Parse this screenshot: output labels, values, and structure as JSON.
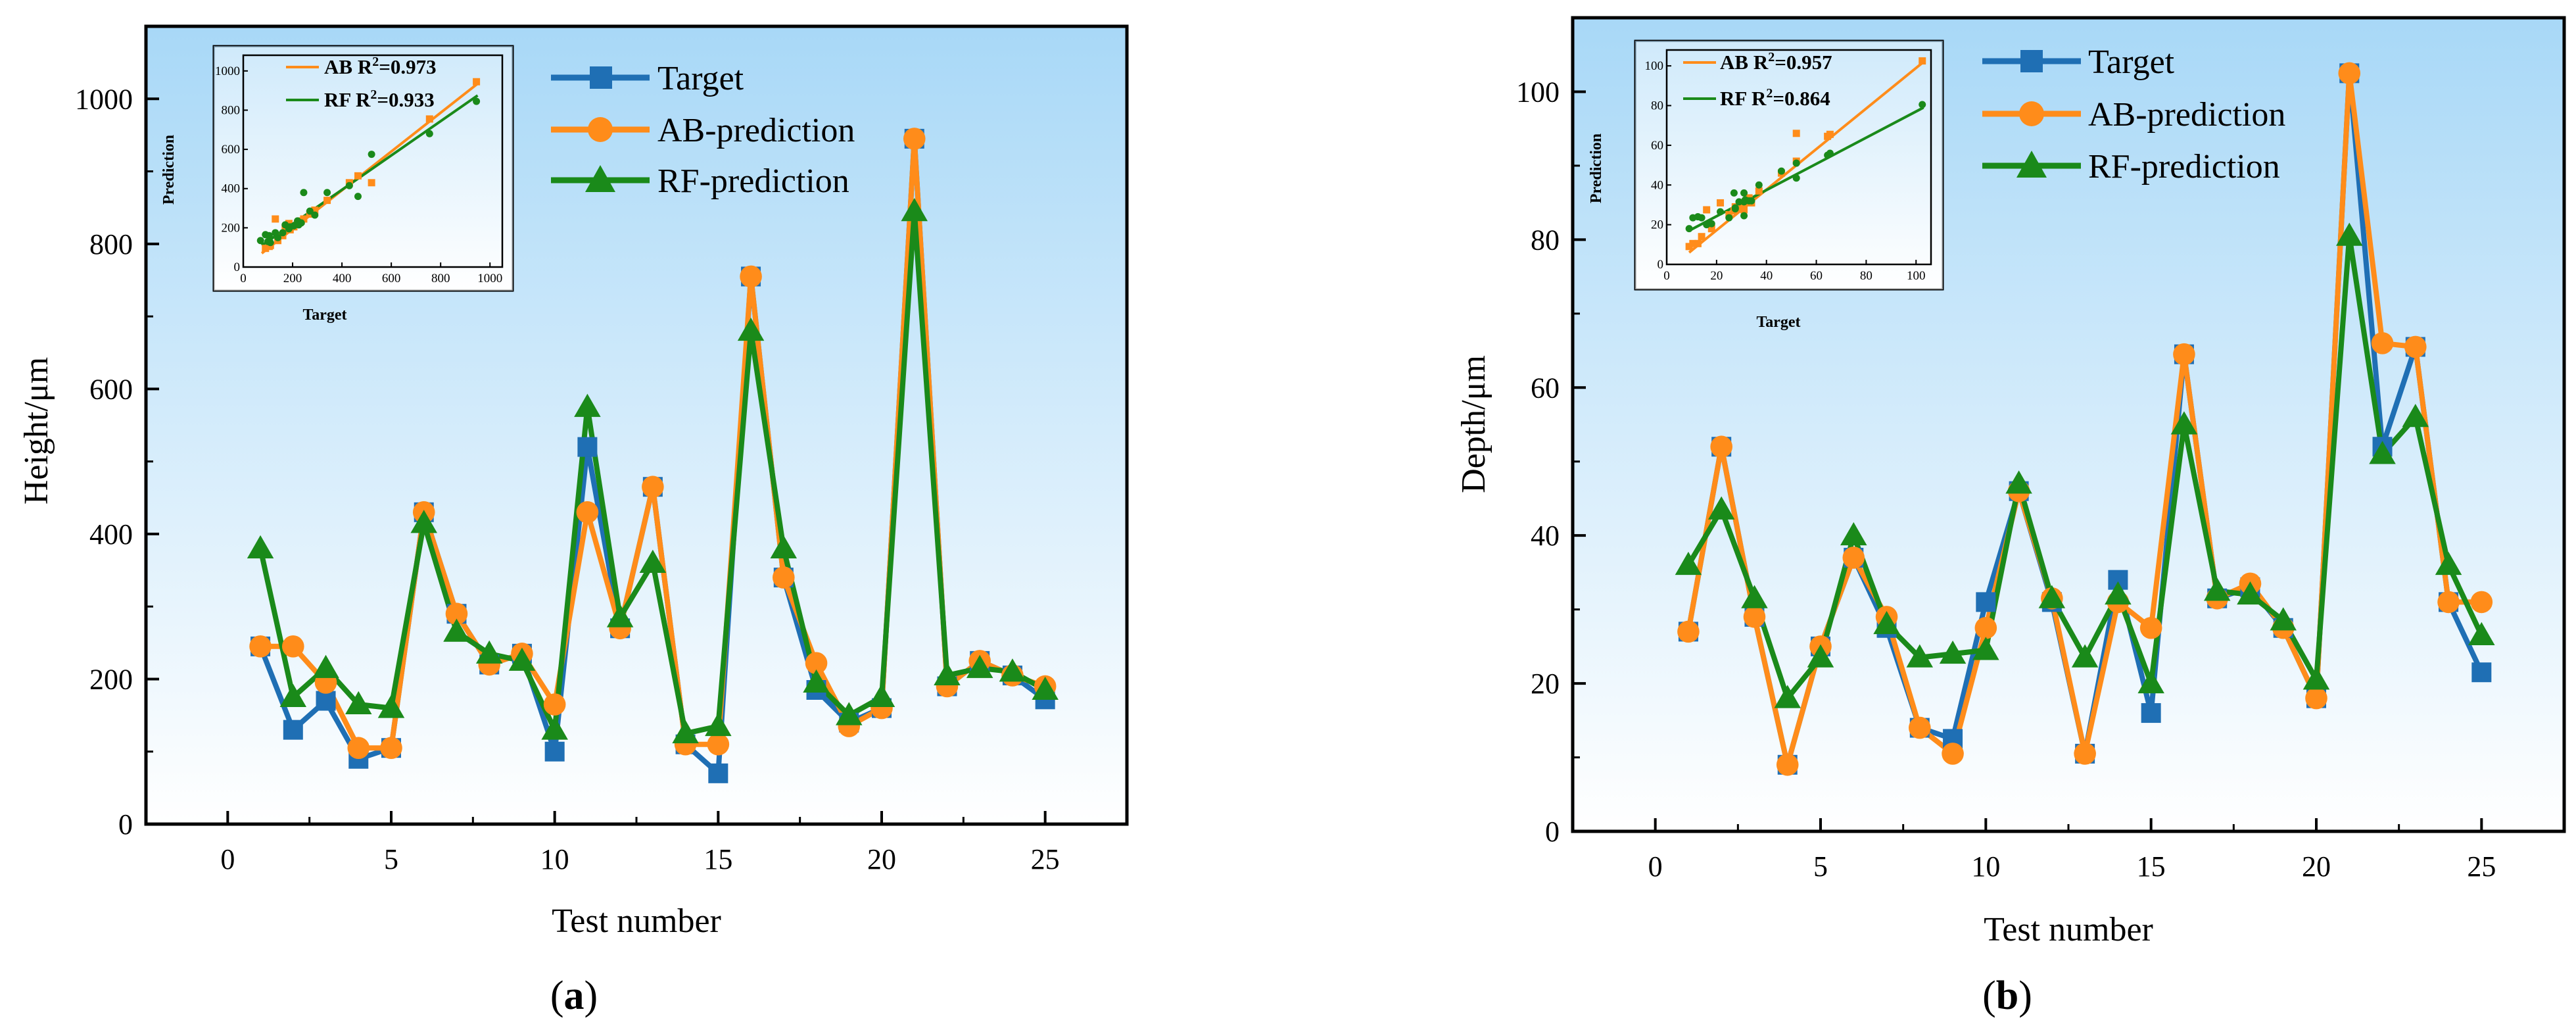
{
  "colors": {
    "target": "#1f6fb4",
    "ab": "#ff8c1a",
    "rf": "#1a8a1a",
    "bg_top": "#a8d8f7",
    "bg_bottom": "#ffffff"
  },
  "legend_labels": {
    "target": "Target",
    "ab": "AB-prediction",
    "rf": "RF-prediction"
  },
  "inset_axis": {
    "xlabel": "Target",
    "ylabel": "Prediction"
  },
  "chart_data": [
    {
      "id": "a",
      "panel_label": "a",
      "type": "line",
      "xlabel": "Test number",
      "ylabel": "Height/μm",
      "xlim": [
        -2.5,
        27.5
      ],
      "ylim": [
        0,
        1100
      ],
      "xticks": [
        0,
        5,
        10,
        15,
        20,
        25
      ],
      "yticks": [
        0,
        200,
        400,
        600,
        800,
        1000
      ],
      "x": [
        1,
        2,
        3,
        4,
        5,
        6,
        7,
        8,
        9,
        10,
        11,
        12,
        13,
        14,
        15,
        16,
        17,
        18,
        19,
        20,
        21,
        22,
        23,
        24,
        25
      ],
      "series": [
        {
          "key": "target",
          "name": "Target",
          "marker": "square",
          "values": [
            245,
            130,
            170,
            90,
            105,
            430,
            290,
            220,
            235,
            100,
            520,
            270,
            465,
            110,
            70,
            755,
            340,
            185,
            140,
            160,
            945,
            190,
            225,
            205,
            172
          ]
        },
        {
          "key": "ab",
          "name": "AB-prediction",
          "marker": "circle",
          "values": [
            245,
            245,
            195,
            105,
            105,
            430,
            290,
            220,
            235,
            165,
            430,
            270,
            465,
            110,
            110,
            755,
            340,
            222,
            135,
            160,
            945,
            190,
            225,
            205,
            190
          ]
        },
        {
          "key": "rf",
          "name": "RF-prediction",
          "marker": "triangle",
          "values": [
            380,
            175,
            215,
            165,
            160,
            415,
            265,
            235,
            225,
            130,
            575,
            285,
            360,
            125,
            135,
            680,
            380,
            195,
            150,
            175,
            845,
            205,
            215,
            210,
            185
          ]
        }
      ],
      "inset": {
        "xlim": [
          0,
          1050
        ],
        "ylim": [
          0,
          1080
        ],
        "xticks": [
          0,
          200,
          400,
          600,
          800,
          1000
        ],
        "yticks": [
          0,
          200,
          400,
          600,
          800,
          1000
        ],
        "ab_label": "AB",
        "ab_r2_value": "=0.973",
        "rf_label": "RF",
        "rf_r2_value": "=0.933",
        "ab_fit": [
          [
            75,
            70
          ],
          [
            950,
            935
          ]
        ],
        "rf_fit": [
          [
            75,
            110
          ],
          [
            950,
            875
          ]
        ],
        "ab_points": [
          [
            90,
            95
          ],
          [
            105,
            105
          ],
          [
            110,
            110
          ],
          [
            130,
            245
          ],
          [
            140,
            135
          ],
          [
            160,
            160
          ],
          [
            170,
            195
          ],
          [
            185,
            222
          ],
          [
            190,
            190
          ],
          [
            205,
            205
          ],
          [
            220,
            220
          ],
          [
            225,
            225
          ],
          [
            235,
            235
          ],
          [
            245,
            245
          ],
          [
            270,
            270
          ],
          [
            290,
            290
          ],
          [
            340,
            340
          ],
          [
            430,
            430
          ],
          [
            465,
            465
          ],
          [
            520,
            430
          ],
          [
            755,
            755
          ],
          [
            945,
            945
          ]
        ],
        "rf_points": [
          [
            70,
            135
          ],
          [
            90,
            165
          ],
          [
            100,
            130
          ],
          [
            105,
            160
          ],
          [
            110,
            125
          ],
          [
            130,
            175
          ],
          [
            140,
            150
          ],
          [
            160,
            175
          ],
          [
            170,
            215
          ],
          [
            185,
            195
          ],
          [
            190,
            205
          ],
          [
            205,
            210
          ],
          [
            220,
            235
          ],
          [
            225,
            215
          ],
          [
            235,
            225
          ],
          [
            245,
            380
          ],
          [
            270,
            285
          ],
          [
            290,
            265
          ],
          [
            340,
            380
          ],
          [
            430,
            415
          ],
          [
            465,
            360
          ],
          [
            520,
            575
          ],
          [
            755,
            680
          ],
          [
            945,
            845
          ]
        ]
      }
    },
    {
      "id": "b",
      "panel_label": "b",
      "type": "line",
      "xlabel": "Test number",
      "ylabel": "Depth/μm",
      "xlim": [
        -2.5,
        27.5
      ],
      "ylim": [
        0,
        110
      ],
      "xticks": [
        0,
        5,
        10,
        15,
        20,
        25
      ],
      "yticks": [
        0,
        20,
        40,
        60,
        80,
        100
      ],
      "x": [
        1,
        2,
        3,
        4,
        5,
        6,
        7,
        8,
        9,
        10,
        11,
        12,
        13,
        14,
        15,
        16,
        17,
        18,
        19,
        20,
        21,
        22,
        23,
        24,
        25
      ],
      "series": [
        {
          "key": "target",
          "name": "Target",
          "marker": "square",
          "values": [
            27,
            52,
            29,
            9,
            25,
            37,
            27.5,
            14,
            12.5,
            31,
            46,
            31,
            10.5,
            34,
            16,
            64.5,
            31.5,
            33,
            27.5,
            18,
            102.5,
            52,
            65.5,
            31,
            21.5
          ]
        },
        {
          "key": "ab",
          "name": "AB-prediction",
          "marker": "circle",
          "values": [
            27,
            52,
            29,
            9,
            25,
            37,
            29,
            14,
            10.5,
            27.5,
            46,
            31.5,
            10.5,
            31,
            27.5,
            64.5,
            31.5,
            33.5,
            27.5,
            18,
            102.5,
            66,
            65.5,
            31,
            31
          ]
        },
        {
          "key": "rf",
          "name": "RF-prediction",
          "marker": "triangle",
          "values": [
            36,
            43.5,
            31.5,
            18,
            23.5,
            40,
            28,
            23.5,
            24,
            24.5,
            47,
            31.5,
            23.5,
            32,
            20,
            55,
            32.5,
            32,
            28.5,
            20.5,
            80.5,
            51,
            56,
            36,
            26.5
          ]
        }
      ],
      "inset": {
        "xlim": [
          0,
          106
        ],
        "ylim": [
          0,
          108
        ],
        "xticks": [
          0,
          20,
          40,
          60,
          80,
          100
        ],
        "yticks": [
          0,
          20,
          40,
          60,
          80,
          100
        ],
        "ab_label": "AB",
        "ab_r2_value": "=0.957",
        "rf_label": "RF",
        "rf_r2_value": "=0.864",
        "ab_fit": [
          [
            9,
            6
          ],
          [
            103,
            102
          ]
        ],
        "rf_fit": [
          [
            9,
            17
          ],
          [
            103,
            79
          ]
        ],
        "ab_points": [
          [
            9,
            9
          ],
          [
            10.5,
            10.5
          ],
          [
            12.5,
            10.5
          ],
          [
            14,
            14
          ],
          [
            16,
            27.5
          ],
          [
            18,
            18
          ],
          [
            21.5,
            31
          ],
          [
            25,
            25
          ],
          [
            27,
            27
          ],
          [
            27.5,
            29
          ],
          [
            27.5,
            27.5
          ],
          [
            29,
            29
          ],
          [
            31,
            27.5
          ],
          [
            31,
            31
          ],
          [
            31.5,
            31.5
          ],
          [
            33,
            33.5
          ],
          [
            34,
            31
          ],
          [
            37,
            37
          ],
          [
            46,
            46
          ],
          [
            52,
            52
          ],
          [
            52,
            66
          ],
          [
            64.5,
            64.5
          ],
          [
            65.5,
            65.5
          ],
          [
            102.5,
            102.5
          ]
        ],
        "rf_points": [
          [
            9,
            18
          ],
          [
            10.5,
            23.5
          ],
          [
            12.5,
            24
          ],
          [
            14,
            23.5
          ],
          [
            16,
            20
          ],
          [
            18,
            20.5
          ],
          [
            21.5,
            26.5
          ],
          [
            25,
            23.5
          ],
          [
            27,
            36
          ],
          [
            27.5,
            28
          ],
          [
            27.5,
            28.5
          ],
          [
            29,
            31.5
          ],
          [
            31,
            24.5
          ],
          [
            31,
            36
          ],
          [
            31,
            31.5
          ],
          [
            31.5,
            32.5
          ],
          [
            33,
            32
          ],
          [
            34,
            32
          ],
          [
            37,
            40
          ],
          [
            46,
            47
          ],
          [
            52,
            43.5
          ],
          [
            52,
            51
          ],
          [
            64.5,
            55
          ],
          [
            65.5,
            56
          ],
          [
            102.5,
            80.5
          ]
        ]
      }
    }
  ]
}
